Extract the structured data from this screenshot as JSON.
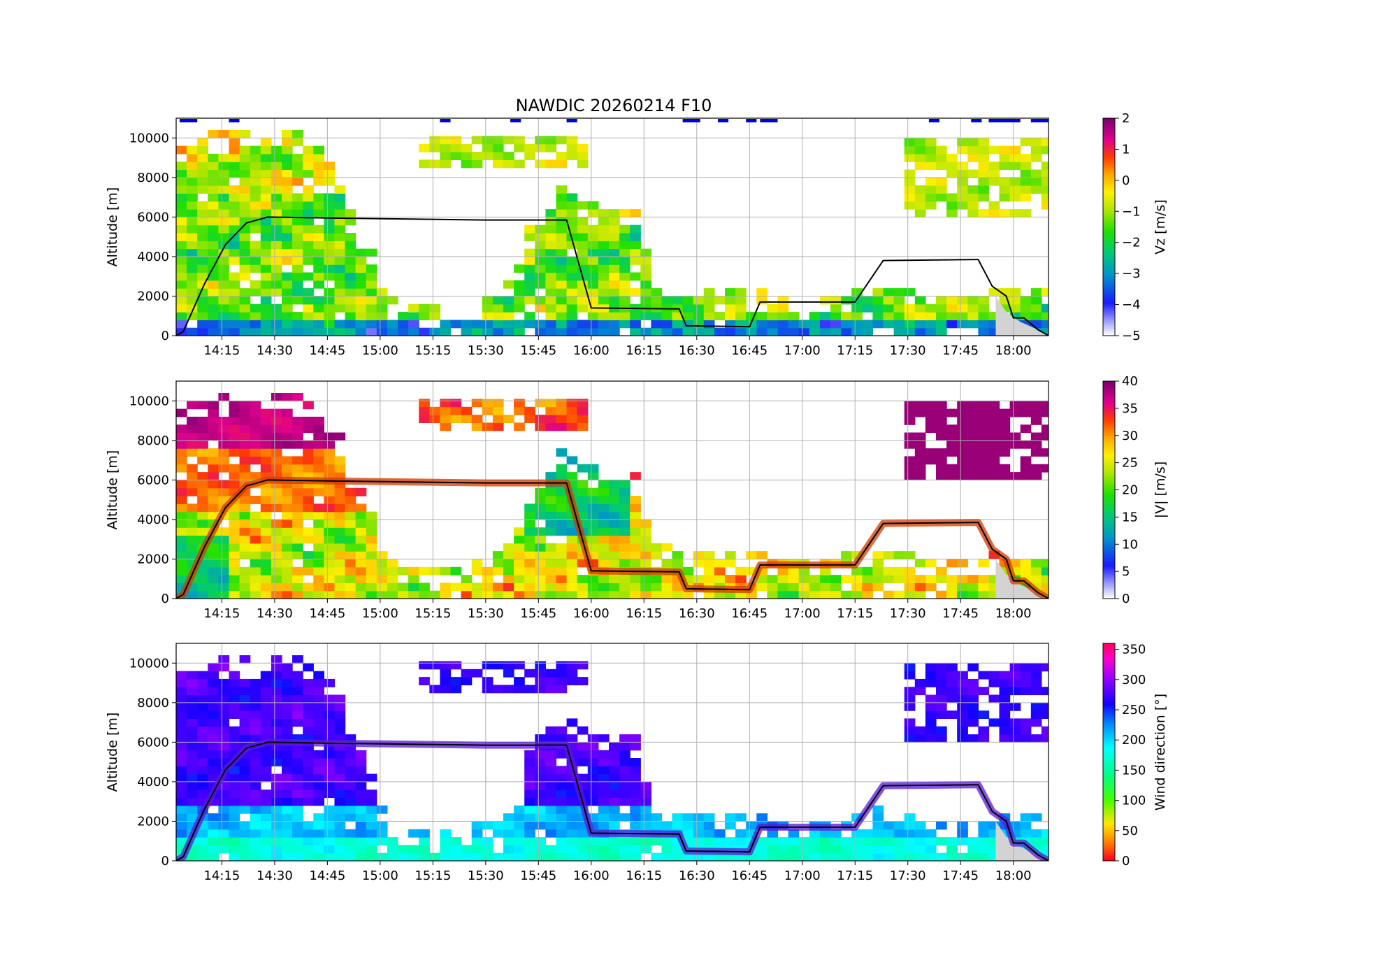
{
  "figure": {
    "title": "NAWDIC 20260214 F10"
  },
  "colors": {
    "grid": "#b0b0b0",
    "flight_track": "#000000",
    "ground": "#d3d3d3",
    "cloud_flag": "#0000dd"
  },
  "chart_data": [
    {
      "type": "heatmap",
      "variable": "Vz",
      "title": "NAWDIC 20260214 F10",
      "xlabel": "",
      "ylabel": "Altitude [m]",
      "colorbar_label": "Vz [m/s]",
      "colormap": "gist_ncar-like (white-violet-blue-green-yellow-red-purple)",
      "vmin": -5,
      "vmax": 2,
      "colorbar_ticks": [
        "2",
        "1",
        "0",
        "−1",
        "−2",
        "−3",
        "−4",
        "−5"
      ],
      "x_tick_labels": [
        "14:15",
        "14:30",
        "14:45",
        "15:00",
        "15:15",
        "15:30",
        "15:45",
        "16:00",
        "16:15",
        "16:30",
        "16:45",
        "17:00",
        "17:15",
        "17:30",
        "17:45",
        "18:00"
      ],
      "y_tick_labels": [
        "0",
        "2000",
        "4000",
        "6000",
        "8000",
        "10000"
      ],
      "xlim": [
        "14:02",
        "18:10"
      ],
      "ylim": [
        0,
        11000
      ],
      "grid": true,
      "flight_altitude_track": [
        [
          "14:02",
          0
        ],
        [
          "14:04",
          200
        ],
        [
          "14:10",
          2600
        ],
        [
          "14:16",
          4600
        ],
        [
          "14:22",
          5700
        ],
        [
          "14:28",
          6000
        ],
        [
          "14:45",
          5950
        ],
        [
          "15:30",
          5850
        ],
        [
          "15:53",
          5850
        ],
        [
          "16:00",
          1400
        ],
        [
          "16:25",
          1350
        ],
        [
          "16:27",
          500
        ],
        [
          "16:45",
          450
        ],
        [
          "16:48",
          1700
        ],
        [
          "17:15",
          1700
        ],
        [
          "17:23",
          3800
        ],
        [
          "17:50",
          3850
        ],
        [
          "17:54",
          2500
        ],
        [
          "17:58",
          2000
        ],
        [
          "18:00",
          900
        ],
        [
          "18:03",
          900
        ],
        [
          "18:07",
          300
        ],
        [
          "18:10",
          0
        ]
      ],
      "cloud_top_flags": [
        [
          "14:03",
          "14:08"
        ],
        [
          "14:17",
          "14:20"
        ],
        [
          "15:17",
          "15:20"
        ],
        [
          "15:37",
          "15:40"
        ],
        [
          "15:53",
          "15:56"
        ],
        [
          "16:26",
          "16:31"
        ],
        [
          "16:36",
          "16:39"
        ],
        [
          "16:44",
          "16:47"
        ],
        [
          "16:48",
          "16:53"
        ],
        [
          "17:36",
          "17:39"
        ],
        [
          "17:48",
          "17:51"
        ],
        [
          "17:53",
          "18:02"
        ],
        [
          "18:05",
          "18:10"
        ]
      ]
    },
    {
      "type": "heatmap",
      "variable": "|V|",
      "xlabel": "",
      "ylabel": "Altitude [m]",
      "colorbar_label": "|V| [m/s]",
      "colormap": "gist_ncar-like (white-violet-blue-green-yellow-red-purple)",
      "vmin": 0,
      "vmax": 40,
      "colorbar_ticks": [
        "40",
        "35",
        "30",
        "25",
        "20",
        "15",
        "10",
        "5",
        "0"
      ],
      "x_tick_labels": [
        "14:15",
        "14:30",
        "14:45",
        "15:00",
        "15:15",
        "15:30",
        "15:45",
        "16:00",
        "16:15",
        "16:30",
        "16:45",
        "17:00",
        "17:15",
        "17:30",
        "17:45",
        "18:00"
      ],
      "y_tick_labels": [
        "0",
        "2000",
        "4000",
        "6000",
        "8000",
        "10000"
      ],
      "xlim": [
        "14:02",
        "18:10"
      ],
      "ylim": [
        0,
        11000
      ],
      "grid": true
    },
    {
      "type": "heatmap",
      "variable": "Wind direction",
      "xlabel": "",
      "ylabel": "Altitude [m]",
      "colorbar_label": "Wind direction [°]",
      "colormap": "gist_rainbow-like (red-yellow-green-cyan-blue-violet-magenta)",
      "vmin": 0,
      "vmax": 360,
      "colorbar_ticks": [
        "350",
        "300",
        "250",
        "200",
        "150",
        "100",
        "50",
        "0"
      ],
      "x_tick_labels": [
        "14:15",
        "14:30",
        "14:45",
        "15:00",
        "15:15",
        "15:30",
        "15:45",
        "16:00",
        "16:15",
        "16:30",
        "16:45",
        "17:00",
        "17:15",
        "17:30",
        "17:45",
        "18:00"
      ],
      "y_tick_labels": [
        "0",
        "2000",
        "4000",
        "6000",
        "8000",
        "10000"
      ],
      "xlim": [
        "14:02",
        "18:10"
      ],
      "ylim": [
        0,
        11000
      ],
      "grid": true
    }
  ]
}
